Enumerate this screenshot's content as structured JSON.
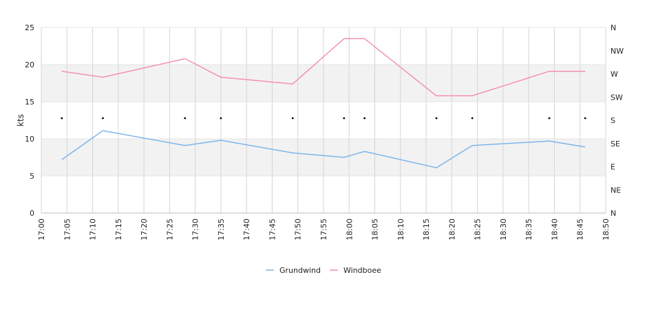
{
  "chart_data": {
    "type": "line",
    "title": "",
    "xlabel": "",
    "ylabel": "kts",
    "ylim": [
      0,
      25
    ],
    "yticks": [
      0,
      5,
      10,
      15,
      20,
      25
    ],
    "xlim": [
      "17:00",
      "18:50"
    ],
    "xticks": [
      "17:00",
      "17:05",
      "17:10",
      "17:15",
      "17:20",
      "17:25",
      "17:30",
      "17:35",
      "17:40",
      "17:45",
      "17:50",
      "17:55",
      "18:00",
      "18:05",
      "18:10",
      "18:15",
      "18:20",
      "18:25",
      "18:30",
      "18:35",
      "18:40",
      "18:45",
      "18:50"
    ],
    "y2ticks": [
      "N",
      "NW",
      "W",
      "SW",
      "S",
      "SE",
      "E",
      "NE",
      "N"
    ],
    "grid": true,
    "bands": [
      [
        5,
        10
      ],
      [
        15,
        20
      ]
    ],
    "legend_position": "bottom",
    "series": [
      {
        "name": "Grundwind",
        "color": "#7cb5ec",
        "points": [
          {
            "x": "17:04",
            "y": 7.2
          },
          {
            "x": "17:12",
            "y": 11.1
          },
          {
            "x": "17:28",
            "y": 9.1
          },
          {
            "x": "17:35",
            "y": 9.8
          },
          {
            "x": "17:49",
            "y": 8.1
          },
          {
            "x": "17:59",
            "y": 7.5
          },
          {
            "x": "18:03",
            "y": 8.3
          },
          {
            "x": "18:17",
            "y": 6.1
          },
          {
            "x": "18:24",
            "y": 9.1
          },
          {
            "x": "18:39",
            "y": 9.7
          },
          {
            "x": "18:46",
            "y": 8.9
          }
        ]
      },
      {
        "name": "Windboee",
        "color": "#f48fb1",
        "points": [
          {
            "x": "17:04",
            "y": 19.1
          },
          {
            "x": "17:12",
            "y": 18.3
          },
          {
            "x": "17:28",
            "y": 20.8
          },
          {
            "x": "17:35",
            "y": 18.3
          },
          {
            "x": "17:49",
            "y": 17.4
          },
          {
            "x": "17:59",
            "y": 23.5
          },
          {
            "x": "18:03",
            "y": 23.5
          },
          {
            "x": "18:17",
            "y": 15.8
          },
          {
            "x": "18:24",
            "y": 15.8
          },
          {
            "x": "18:39",
            "y": 19.1
          },
          {
            "x": "18:46",
            "y": 19.1
          }
        ]
      }
    ],
    "direction_markers": {
      "x": [
        "17:04",
        "17:12",
        "17:28",
        "17:35",
        "17:49",
        "17:59",
        "18:03",
        "18:17",
        "18:24",
        "18:39",
        "18:46"
      ],
      "value": "S"
    }
  }
}
